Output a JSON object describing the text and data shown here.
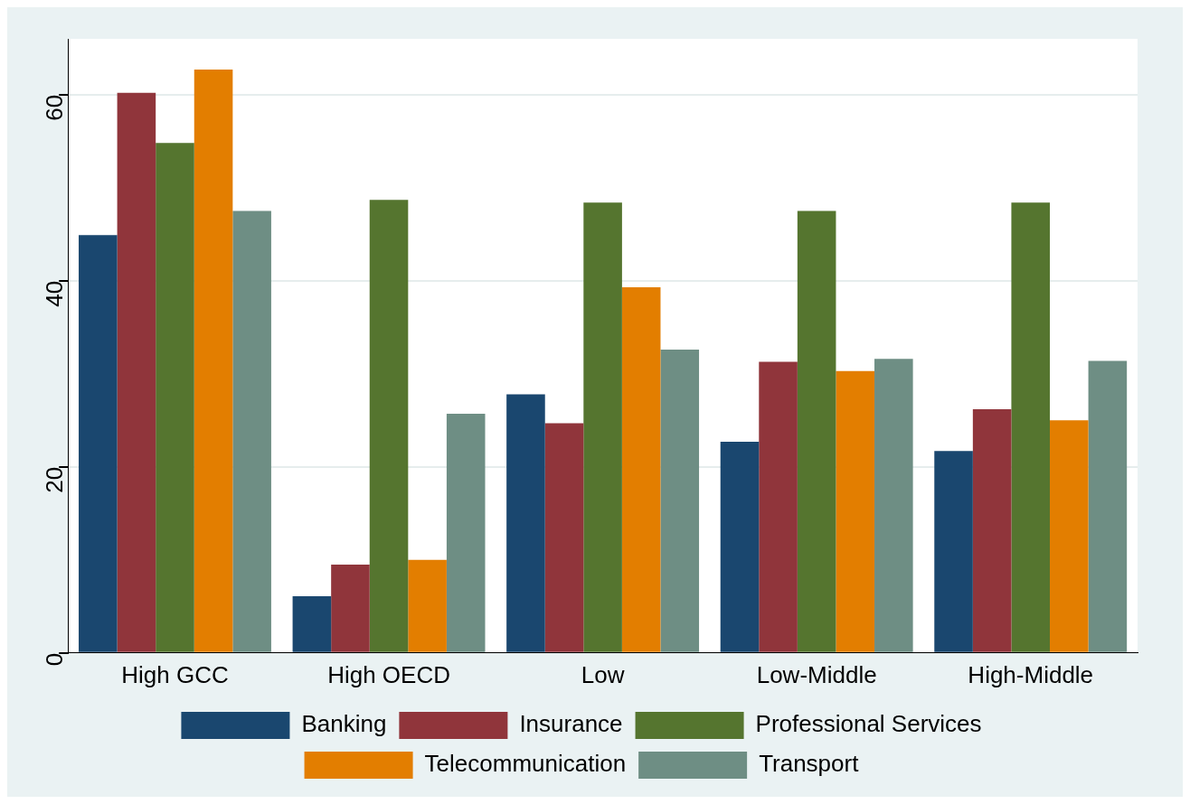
{
  "chart_data": {
    "type": "bar",
    "categories": [
      "High GCC",
      "High OECD",
      "Low",
      "Low-Middle",
      "High-Middle"
    ],
    "series": [
      {
        "name": "Banking",
        "color": "#1a476f",
        "values": [
          44.9,
          6.1,
          27.8,
          22.7,
          21.7
        ]
      },
      {
        "name": "Insurance",
        "color": "#90353b",
        "values": [
          60.2,
          9.5,
          24.7,
          31.3,
          26.2
        ]
      },
      {
        "name": "Professional Services",
        "color": "#55752f",
        "values": [
          54.8,
          48.7,
          48.4,
          47.5,
          48.4
        ]
      },
      {
        "name": "Telecommunication",
        "color": "#e37e00",
        "values": [
          62.7,
          10.0,
          39.3,
          30.3,
          25.0
        ]
      },
      {
        "name": "Transport",
        "color": "#6e8e84",
        "values": [
          47.5,
          25.7,
          32.6,
          31.6,
          31.4
        ]
      }
    ],
    "ylim": [
      0,
      66
    ],
    "yticks": [
      0,
      20,
      40,
      60
    ],
    "grid": "y",
    "legend": "bottom"
  }
}
